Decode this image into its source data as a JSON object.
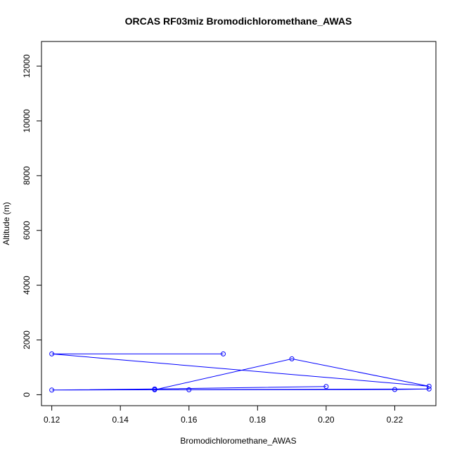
{
  "chart_data": {
    "type": "line",
    "title": "ORCAS RF03miz Bromodichloromethane_AWAS",
    "xlabel": "Bromodichloromethane_AWAS",
    "ylabel": "Altitude (m)",
    "xlim": [
      0.117,
      0.232
    ],
    "ylim": [
      -400,
      12900
    ],
    "xticks": [
      0.12,
      0.14,
      0.16,
      0.18,
      0.2,
      0.22
    ],
    "xtick_labels": [
      "0.12",
      "0.14",
      "0.16",
      "0.18",
      "0.20",
      "0.22"
    ],
    "yticks": [
      0,
      2000,
      4000,
      6000,
      8000,
      10000,
      12000
    ],
    "ytick_labels": [
      "0",
      "2000",
      "4000",
      "6000",
      "8000",
      "10000",
      "12000"
    ],
    "grid": false,
    "series_color": "#0000ff",
    "series": [
      {
        "x": [
          0.17,
          0.12,
          0.23,
          0.19,
          0.15,
          0.16,
          0.22,
          0.23,
          0.12,
          0.15,
          0.2
        ],
        "y": [
          1490,
          1490,
          310,
          1310,
          180,
          180,
          190,
          210,
          170,
          210,
          300
        ]
      }
    ]
  }
}
